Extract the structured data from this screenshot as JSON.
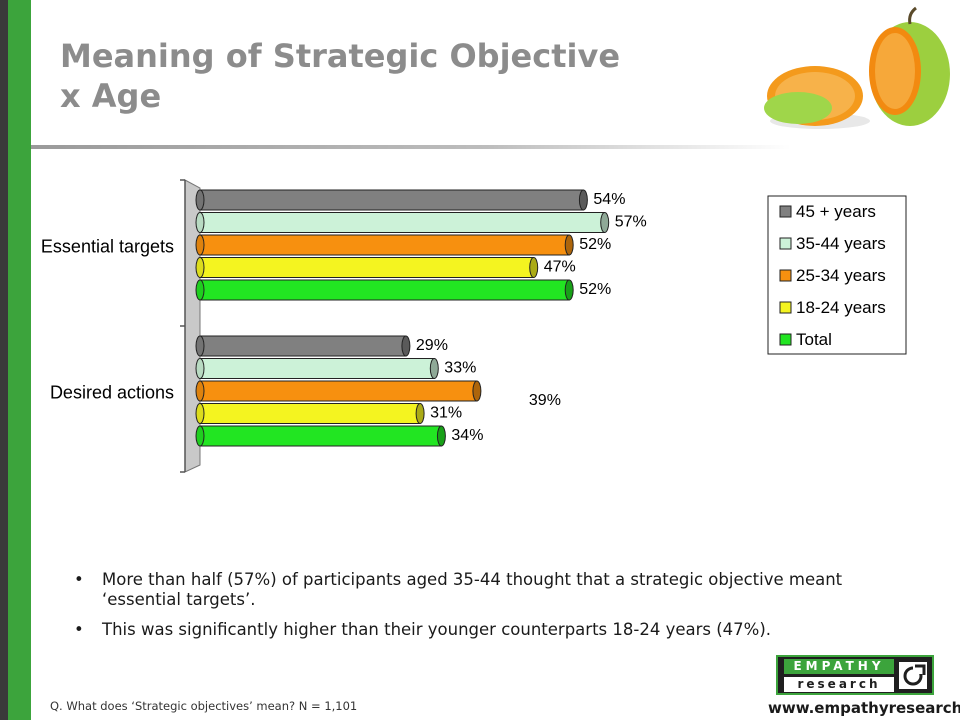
{
  "slide": {
    "title_line1": "Meaning of Strategic Objective",
    "title_line2": "x Age"
  },
  "bullets": [
    "More than half (57%) of participants aged 35-44 thought that a strategic objective meant ‘essential targets’.",
    "This was significantly higher than their younger counterparts 18-24 years (47%)."
  ],
  "footnote": "Q. What does ‘Strategic objectives’ mean? N = 1,101",
  "logo": {
    "top_text": "EMPATHY",
    "bottom_text": "research"
  },
  "website": "www.empathyresearch.ie",
  "colors": {
    "accent_green": "#3ca43c",
    "title_grey": "#8c8c8c"
  },
  "chart_data": {
    "type": "bar",
    "orientation": "horizontal",
    "categories": [
      "Essential targets",
      "Desired actions"
    ],
    "series": [
      {
        "name": "45 + years",
        "values": [
          54,
          29
        ],
        "color": "#808080"
      },
      {
        "name": "35-44 years",
        "values": [
          57,
          33
        ],
        "color": "#ccf2d8"
      },
      {
        "name": "25-34 years",
        "values": [
          52,
          39
        ],
        "color": "#f7900f"
      },
      {
        "name": "18-24 years",
        "values": [
          47,
          31
        ],
        "color": "#f4f420"
      },
      {
        "name": "Total",
        "values": [
          52,
          34
        ],
        "color": "#22e522"
      }
    ],
    "value_suffix": "%",
    "xlim": [
      0,
      100
    ],
    "legend_position": "right",
    "grid": false
  }
}
